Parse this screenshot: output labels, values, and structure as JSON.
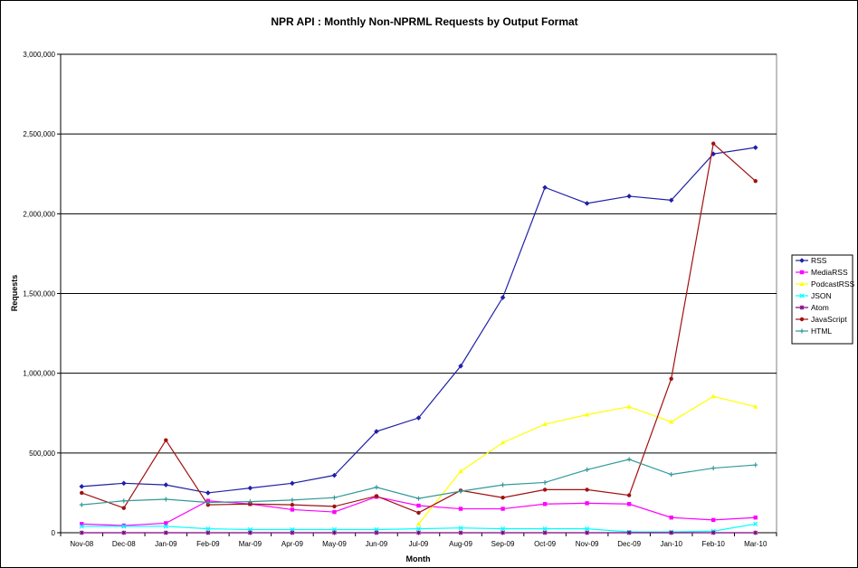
{
  "chart_data": {
    "type": "line",
    "title": "NPR API : Monthly Non-NPRML Requests by Output Format",
    "xlabel": "Month",
    "ylabel": "Requests",
    "ylim": [
      0,
      3000000
    ],
    "y_ticks": [
      0,
      500000,
      1000000,
      1500000,
      2000000,
      2500000,
      3000000
    ],
    "y_tick_labels": [
      "0",
      "500,000",
      "1,000,000",
      "1,500,000",
      "2,000,000",
      "2,500,000",
      "3,000,000"
    ],
    "grid": "horizontal",
    "legend_position": "right",
    "categories": [
      "Nov-08",
      "Dec-08",
      "Jan-09",
      "Feb-09",
      "Mar-09",
      "Apr-09",
      "May-09",
      "Jun-09",
      "Jul-09",
      "Aug-09",
      "Sep-09",
      "Oct-09",
      "Nov-09",
      "Dec-09",
      "Jan-10",
      "Feb-10",
      "Mar-10"
    ],
    "series": [
      {
        "name": "RSS",
        "color": "#1f1fa8",
        "marker": "diamond",
        "values": [
          290000,
          310000,
          300000,
          250000,
          280000,
          310000,
          360000,
          635000,
          720000,
          1045000,
          1475000,
          2165000,
          2065000,
          2110000,
          2085000,
          2375000,
          2415000
        ]
      },
      {
        "name": "MediaRSS",
        "color": "#ff00ff",
        "marker": "square",
        "values": [
          55000,
          45000,
          60000,
          200000,
          180000,
          145000,
          130000,
          225000,
          170000,
          150000,
          150000,
          180000,
          185000,
          180000,
          95000,
          80000,
          95000
        ]
      },
      {
        "name": "PodcastRSS",
        "color": "#ffff00",
        "marker": "triangle",
        "values": [
          null,
          null,
          null,
          null,
          null,
          null,
          null,
          null,
          55000,
          385000,
          565000,
          680000,
          740000,
          790000,
          695000,
          855000,
          790000
        ]
      },
      {
        "name": "JSON",
        "color": "#00ffff",
        "marker": "x",
        "values": [
          40000,
          40000,
          40000,
          25000,
          20000,
          20000,
          20000,
          20000,
          25000,
          30000,
          25000,
          25000,
          25000,
          5000,
          5000,
          10000,
          55000
        ]
      },
      {
        "name": "Atom",
        "color": "#800080",
        "marker": "star",
        "values": [
          0,
          0,
          0,
          0,
          0,
          0,
          0,
          0,
          0,
          0,
          0,
          0,
          0,
          0,
          0,
          0,
          0
        ]
      },
      {
        "name": "JavaScript",
        "color": "#a01010",
        "marker": "circle",
        "values": [
          250000,
          155000,
          580000,
          175000,
          180000,
          175000,
          165000,
          230000,
          125000,
          265000,
          220000,
          270000,
          270000,
          235000,
          965000,
          2440000,
          2205000
        ]
      },
      {
        "name": "HTML",
        "color": "#339999",
        "marker": "plus",
        "values": [
          175000,
          200000,
          210000,
          190000,
          195000,
          205000,
          220000,
          285000,
          215000,
          260000,
          300000,
          315000,
          395000,
          460000,
          365000,
          405000,
          425000
        ]
      }
    ]
  }
}
